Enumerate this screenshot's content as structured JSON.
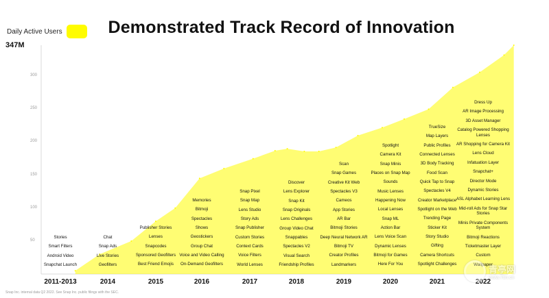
{
  "title": "Demonstrated Track Record of Innovation",
  "legend": {
    "label": "Daily Active Users"
  },
  "footnote": "Snap Inc. internal data Q2 2022. See Snap Inc. public filings with the SEC.",
  "watermark": {
    "text": "青亭网",
    "url": "www.7tin.cn"
  },
  "colors": {
    "area": "#fffc00",
    "text": "#111111",
    "muted": "#9a9a9a"
  },
  "chart_data": {
    "type": "area",
    "title": "Demonstrated Track Record of Innovation",
    "ylabel": "Daily Active Users",
    "y_max_label": "347M",
    "ylim": [
      0,
      347
    ],
    "y_ticks": [
      50,
      100,
      150,
      200,
      250,
      300
    ],
    "xlim": [
      0,
      10
    ],
    "categories": [
      "2011-2013",
      "2014",
      "2015",
      "2016",
      "2017",
      "2018",
      "2019",
      "2020",
      "2021",
      "2022"
    ],
    "series": [
      {
        "name": "Daily Active Users",
        "x": [
          0.7,
          1.2,
          1.85,
          2.35,
          2.75,
          3.25,
          3.75,
          4.35,
          4.8,
          5.05,
          5.4,
          5.7,
          6.05,
          6.5,
          7.0,
          7.45,
          7.95,
          8.45,
          9.0,
          9.5,
          9.7
        ],
        "values": [
          5,
          30,
          50,
          80,
          100,
          145,
          160,
          175,
          187,
          190,
          186,
          186,
          192,
          210,
          222,
          235,
          250,
          283,
          306,
          332,
          347
        ]
      }
    ],
    "features": [
      [
        "Stories",
        "Smart Filters",
        "Android Video",
        "Snapchat Launch"
      ],
      [
        "Chat",
        "Snap Ads",
        "Live Stories",
        "Geofilters"
      ],
      [
        "Publisher Stories",
        "Lenses",
        "Snapcodes",
        "Sponsored Geofilters",
        "Best Friend Emojis"
      ],
      [
        "Memories",
        "Bitmoji",
        "Spectacles",
        "Shows",
        "Geostickers",
        "Group Chat",
        "Voice and Video Calling",
        "On-Demand Geofilters"
      ],
      [
        "Snap Pixel",
        "Snap Map",
        "Lens Studio",
        "Story Ads",
        "Snap Publisher",
        "Custom Stories",
        "Context Cards",
        "Voice Filters",
        "World Lenses"
      ],
      [
        "Discover",
        "Lens Explorer",
        "Snap Kit",
        "Snap Originals",
        "Lens Challenges",
        "Group Video Chat",
        "Snappables",
        "Spectacles V2",
        "Visual Search",
        "Friendship Profiles"
      ],
      [
        "Scan",
        "Snap Games",
        "Creative Kit Web",
        "Spectacles V3",
        "Cameos",
        "App Stories",
        "AR Bar",
        "Bitmoji Stories",
        "Deep Neural Network AR",
        "Bitmoji TV",
        "Creator Profiles",
        "Landmarkers"
      ],
      [
        "Spotlight",
        "Camera Kit",
        "Snap Minis",
        "Places on Snap Map",
        "Sounds",
        "Music Lenses",
        "Happening Now",
        "Local Lenses",
        "Snap ML",
        "Action Bar",
        "Lens Voice Scan",
        "Dynamic Lenses",
        "Bitmoji for Games",
        "Here For You"
      ],
      [
        "TrueSize",
        "Map Layers",
        "Public Profiles",
        "Connected Lenses",
        "3D Body Tracking",
        "Food Scan",
        "Quick Tap to Snap",
        "Spectacles V4",
        "Creator Marketplace",
        "Spotlight on the Web",
        "Trending Page",
        "Sticker Kit",
        "Story Studio",
        "Gifting",
        "Camera Shortcuts",
        "Spotlight Challenges"
      ],
      [
        "Dress Up",
        "AR Image Processing",
        "3D Asset Manager",
        "Catalog Powered Shopping Lenses",
        "AR Shopping for Camera Kit",
        "Lens Cloud",
        "Infatuation Layer",
        "Snapchat+",
        "Director Mode",
        "Dynamic Stories",
        "ASL Alphabet Learning Lens",
        "Mid-roll Ads for Snap Star Stories",
        "Minis Private Components System",
        "Bitmoji Reactions",
        "Ticketmaster Layer",
        "Custom",
        "Wallpaper"
      ]
    ]
  }
}
